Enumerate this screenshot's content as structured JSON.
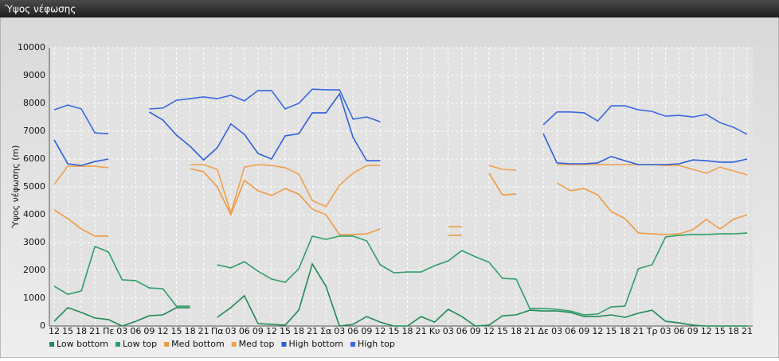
{
  "chart_data": {
    "type": "line",
    "title": "Ύψος νέφωσης",
    "y_label": "Ύψος νέφωσης (m)",
    "categories": [
      "12",
      "15",
      "18",
      "21",
      "Πε",
      "03",
      "06",
      "09",
      "12",
      "15",
      "18",
      "21",
      "Πα",
      "03",
      "06",
      "09",
      "12",
      "15",
      "18",
      "21",
      "Σα",
      "03",
      "06",
      "09",
      "12",
      "15",
      "18",
      "21",
      "Κυ",
      "03",
      "06",
      "09",
      "12",
      "15",
      "18",
      "21",
      "Δε",
      "03",
      "06",
      "09",
      "12",
      "15",
      "18",
      "21",
      "Τρ",
      "03",
      "06",
      "09",
      "12",
      "15",
      "18",
      "21"
    ],
    "ylim": [
      0,
      10000
    ],
    "yticks": [
      0,
      1000,
      2000,
      3000,
      4000,
      5000,
      6000,
      7000,
      8000,
      9000,
      10000
    ],
    "grid": true,
    "series": [
      {
        "name": "Low bottom",
        "color": "#1f8a55",
        "values": [
          170,
          660,
          490,
          290,
          230,
          0,
          170,
          370,
          400,
          660,
          660,
          null,
          310,
          660,
          1090,
          90,
          60,
          30,
          570,
          2230,
          1430,
          0,
          60,
          340,
          140,
          0,
          0,
          340,
          140,
          600,
          340,
          0,
          30,
          370,
          400,
          570,
          540,
          540,
          490,
          340,
          340,
          400,
          310,
          460,
          570,
          170,
          110,
          30,
          0,
          0,
          0,
          0
        ]
      },
      {
        "name": "Low top",
        "color": "#2f9e68",
        "values": [
          1430,
          1140,
          1260,
          2860,
          2660,
          1660,
          1630,
          1370,
          1340,
          710,
          710,
          null,
          2200,
          2090,
          2310,
          1970,
          1690,
          1570,
          2060,
          3230,
          3110,
          3230,
          3230,
          3060,
          2200,
          1910,
          1940,
          1940,
          2170,
          2340,
          2710,
          2490,
          2290,
          1710,
          1690,
          630,
          630,
          600,
          540,
          400,
          430,
          690,
          710,
          2060,
          2200,
          3200,
          3260,
          3290,
          3290,
          3310,
          3310,
          3340
        ]
      },
      {
        "name": "Med bottom",
        "color": "#ee9a45",
        "values": [
          4170,
          3860,
          3490,
          3230,
          3230,
          null,
          null,
          null,
          null,
          null,
          5660,
          5540,
          5000,
          4000,
          5230,
          4860,
          4690,
          4940,
          4740,
          4200,
          4000,
          3290,
          3290,
          3310,
          3490,
          null,
          null,
          null,
          null,
          3260,
          3260,
          null,
          5490,
          4710,
          4740,
          null,
          null,
          5140,
          4860,
          4940,
          4710,
          4110,
          3860,
          3340,
          3310,
          3290,
          3310,
          3460,
          3830,
          3490,
          3830,
          4000
        ]
      },
      {
        "name": "Med top",
        "color": "#f0a04c",
        "values": [
          5090,
          5740,
          5740,
          5740,
          5690,
          null,
          null,
          null,
          null,
          null,
          5800,
          5800,
          5630,
          4060,
          5710,
          5800,
          5770,
          5690,
          5460,
          4510,
          4290,
          5060,
          5490,
          5770,
          5770,
          null,
          null,
          null,
          null,
          3570,
          3570,
          null,
          5770,
          5630,
          5600,
          null,
          null,
          5800,
          5800,
          5800,
          5800,
          5800,
          5800,
          5800,
          5800,
          5770,
          5770,
          5630,
          5490,
          5710,
          5570,
          5430
        ]
      },
      {
        "name": "High bottom",
        "color": "#2f5fd8",
        "values": [
          6690,
          5830,
          5770,
          5910,
          6000,
          null,
          null,
          7690,
          7400,
          6860,
          6460,
          5970,
          6400,
          7260,
          6890,
          6200,
          6000,
          6830,
          6910,
          7660,
          7660,
          8340,
          6770,
          5940,
          5940,
          null,
          null,
          null,
          null,
          null,
          null,
          null,
          null,
          null,
          null,
          null,
          6910,
          5860,
          5830,
          5830,
          5860,
          6090,
          5940,
          5800,
          5800,
          5800,
          5830,
          5970,
          5940,
          5890,
          5890,
          6000
        ]
      },
      {
        "name": "High top",
        "color": "#3a68e0",
        "values": [
          7770,
          7940,
          7800,
          6940,
          6910,
          null,
          null,
          7800,
          7830,
          8110,
          8170,
          8230,
          8170,
          8290,
          8090,
          8460,
          8460,
          7800,
          8000,
          8510,
          8490,
          8490,
          7430,
          7510,
          7340,
          null,
          null,
          null,
          null,
          null,
          null,
          null,
          null,
          null,
          null,
          null,
          7230,
          7690,
          7690,
          7660,
          7370,
          7910,
          7910,
          7770,
          7710,
          7540,
          7570,
          7510,
          7600,
          7310,
          7140,
          6890
        ]
      }
    ]
  }
}
